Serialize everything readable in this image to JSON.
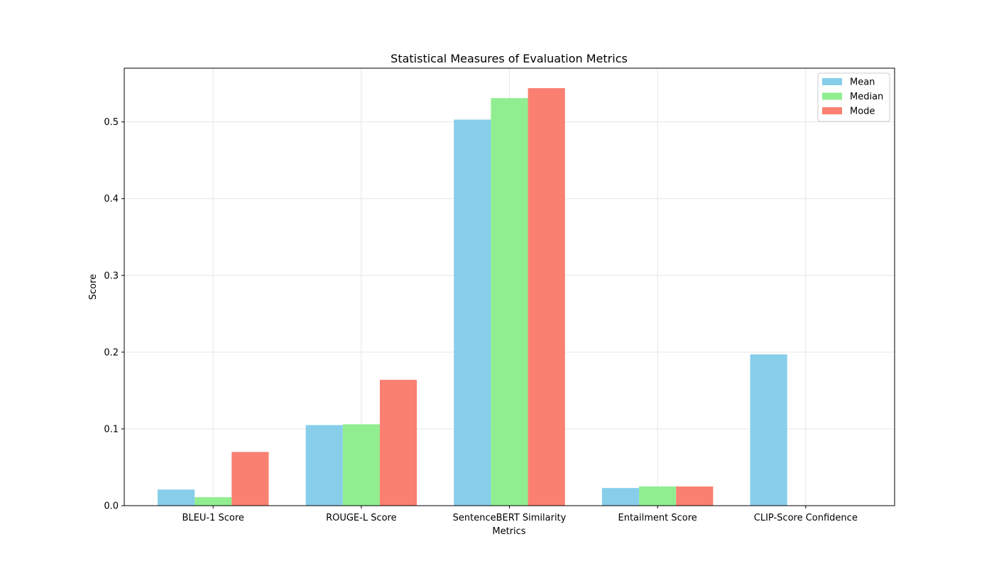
{
  "chart_data": {
    "type": "bar",
    "title": "Statistical Measures of Evaluation Metrics",
    "xlabel": "Metrics",
    "ylabel": "Score",
    "categories": [
      "BLEU-1 Score",
      "ROUGE-L Score",
      "SentenceBERT Similarity",
      "Entailment Score",
      "CLIP-Score Confidence"
    ],
    "series": [
      {
        "name": "Mean",
        "color": "#87ceeb",
        "values": [
          0.021,
          0.105,
          0.503,
          0.023,
          0.197
        ]
      },
      {
        "name": "Median",
        "color": "#90ee90",
        "values": [
          0.011,
          0.106,
          0.531,
          0.025,
          0.0
        ]
      },
      {
        "name": "Mode",
        "color": "#fa8072",
        "values": [
          0.07,
          0.164,
          0.544,
          0.025,
          0.0
        ]
      }
    ],
    "ylim": [
      0,
      0.57
    ],
    "yticks": [
      "0.0",
      "0.1",
      "0.2",
      "0.3",
      "0.4",
      "0.5"
    ],
    "grid": true,
    "legend_position": "top-right"
  }
}
